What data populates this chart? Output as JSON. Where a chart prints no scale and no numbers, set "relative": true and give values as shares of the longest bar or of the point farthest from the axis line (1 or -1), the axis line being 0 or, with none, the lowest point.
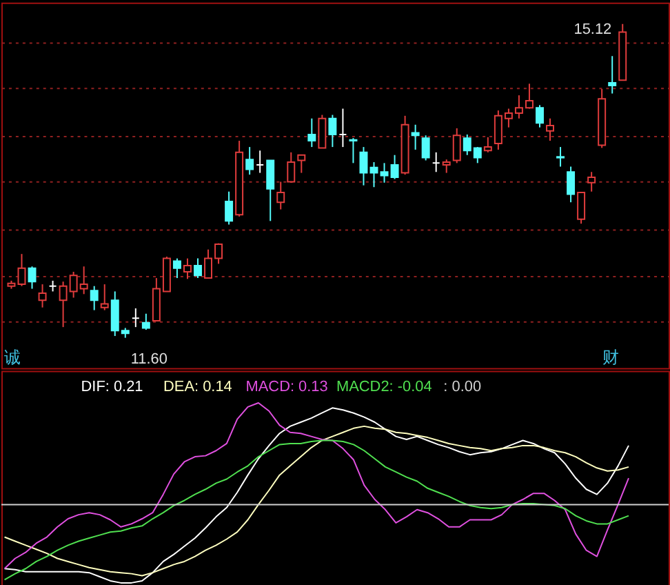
{
  "chart_data": [
    {
      "type": "candlestick",
      "tick_labels": false,
      "grid": "y",
      "categories": [
        null,
        null,
        null,
        null,
        null,
        null,
        null,
        null,
        null,
        null,
        null,
        null,
        null,
        null,
        null,
        null,
        null,
        null,
        null,
        null,
        null,
        null,
        null,
        null,
        null,
        null,
        null,
        null,
        null,
        null,
        null,
        null,
        null,
        null,
        null,
        null,
        null,
        null,
        null,
        null,
        null,
        null,
        null,
        null,
        null,
        null,
        null,
        null,
        null,
        null,
        null,
        null,
        null,
        null,
        null,
        null,
        null,
        null,
        null,
        null
      ],
      "ylim": [
        11.26,
        15.36
      ],
      "yticks": [
        {
          "value": 14.92,
          "label": null
        },
        {
          "value": 14.4,
          "label": null
        },
        {
          "value": 13.87,
          "label": null
        },
        {
          "value": 13.35,
          "label": null
        },
        {
          "value": 12.82,
          "label": null
        },
        {
          "value": 12.3,
          "label": null
        },
        {
          "value": 11.79,
          "label": null
        }
      ],
      "ohlc": [
        [
          12.18,
          12.24,
          12.15,
          12.21
        ],
        [
          12.2,
          12.54,
          12.18,
          12.38
        ],
        [
          12.38,
          12.4,
          12.15,
          12.23
        ],
        [
          12.02,
          12.2,
          11.94,
          12.1
        ],
        [
          12.18,
          12.24,
          12.12,
          12.18
        ],
        [
          12.02,
          12.23,
          11.72,
          12.18
        ],
        [
          12.12,
          12.34,
          12.05,
          12.3
        ],
        [
          12.15,
          12.4,
          12.09,
          12.2
        ],
        [
          12.13,
          12.18,
          11.91,
          12.02
        ],
        [
          11.94,
          12.2,
          11.91,
          11.98
        ],
        [
          12.02,
          12.12,
          11.62,
          11.68
        ],
        [
          11.68,
          11.71,
          11.6,
          11.65
        ],
        [
          11.82,
          11.93,
          11.72,
          11.82
        ],
        [
          11.77,
          11.87,
          11.69,
          11.71
        ],
        [
          11.79,
          12.27,
          11.79,
          12.15
        ],
        [
          12.12,
          12.51,
          12.12,
          12.49
        ],
        [
          12.46,
          12.49,
          12.27,
          12.38
        ],
        [
          12.34,
          12.49,
          12.26,
          12.41
        ],
        [
          12.41,
          12.49,
          12.27,
          12.3
        ],
        [
          12.27,
          12.59,
          12.27,
          12.49
        ],
        [
          12.49,
          12.66,
          12.43,
          12.65
        ],
        [
          13.13,
          13.24,
          12.87,
          12.91
        ],
        [
          12.98,
          13.81,
          12.96,
          13.68
        ],
        [
          13.6,
          13.74,
          13.43,
          13.49
        ],
        [
          13.54,
          13.7,
          13.45,
          13.54
        ],
        [
          13.59,
          13.59,
          12.91,
          13.27
        ],
        [
          13.12,
          13.35,
          13.04,
          13.23
        ],
        [
          13.35,
          13.68,
          13.34,
          13.57
        ],
        [
          13.59,
          13.65,
          13.45,
          13.65
        ],
        [
          13.88,
          14.06,
          13.74,
          13.81
        ],
        [
          13.73,
          14.1,
          13.73,
          14.06
        ],
        [
          14.06,
          14.1,
          13.74,
          13.88
        ],
        [
          13.88,
          14.17,
          13.74,
          13.88
        ],
        [
          13.82,
          13.84,
          13.56,
          13.81
        ],
        [
          13.68,
          13.74,
          13.31,
          13.45
        ],
        [
          13.51,
          13.57,
          13.29,
          13.45
        ],
        [
          13.46,
          13.56,
          13.34,
          13.42
        ],
        [
          13.54,
          13.65,
          13.38,
          13.4
        ],
        [
          13.45,
          14.09,
          13.43,
          13.99
        ],
        [
          13.9,
          13.99,
          13.71,
          13.87
        ],
        [
          13.84,
          13.87,
          13.59,
          13.62
        ],
        [
          13.56,
          13.68,
          13.46,
          13.56
        ],
        [
          13.54,
          13.6,
          13.45,
          13.57
        ],
        [
          13.59,
          13.95,
          13.56,
          13.87
        ],
        [
          13.84,
          13.88,
          13.65,
          13.7
        ],
        [
          13.73,
          13.74,
          13.56,
          13.62
        ],
        [
          13.7,
          13.85,
          13.68,
          13.74
        ],
        [
          13.78,
          14.15,
          13.71,
          14.09
        ],
        [
          14.06,
          14.17,
          13.96,
          14.12
        ],
        [
          14.12,
          14.32,
          14.06,
          14.18
        ],
        [
          14.18,
          14.45,
          14.17,
          14.26
        ],
        [
          14.18,
          14.21,
          13.96,
          14.01
        ],
        [
          13.92,
          14.06,
          13.81,
          13.98
        ],
        [
          13.63,
          13.74,
          13.52,
          13.62
        ],
        [
          13.46,
          13.52,
          13.12,
          13.21
        ],
        [
          12.93,
          13.23,
          12.88,
          13.23
        ],
        [
          13.34,
          13.46,
          13.24,
          13.4
        ],
        [
          13.76,
          14.39,
          13.73,
          14.28
        ],
        [
          14.46,
          14.76,
          14.34,
          14.43
        ],
        [
          14.49,
          15.12,
          14.49,
          15.03
        ]
      ],
      "colors": [
        "#e03c3c",
        "#e03c3c",
        "#54fcfc",
        "#e03c3c",
        "#ffffff",
        "#e03c3c",
        "#e03c3c",
        "#e03c3c",
        "#54fcfc",
        "#e03c3c",
        "#54fcfc",
        "#54fcfc",
        "#ffffff",
        "#54fcfc",
        "#e03c3c",
        "#e03c3c",
        "#54fcfc",
        "#e03c3c",
        "#54fcfc",
        "#e03c3c",
        "#e03c3c",
        "#54fcfc",
        "#e03c3c",
        "#54fcfc",
        "#ffffff",
        "#54fcfc",
        "#e03c3c",
        "#e03c3c",
        "#e03c3c",
        "#54fcfc",
        "#e03c3c",
        "#54fcfc",
        "#ffffff",
        "#54fcfc",
        "#54fcfc",
        "#54fcfc",
        "#54fcfc",
        "#54fcfc",
        "#e03c3c",
        "#54fcfc",
        "#54fcfc",
        "#ffffff",
        "#e03c3c",
        "#e03c3c",
        "#54fcfc",
        "#54fcfc",
        "#e03c3c",
        "#e03c3c",
        "#e03c3c",
        "#e03c3c",
        "#e03c3c",
        "#54fcfc",
        "#e03c3c",
        "#54fcfc",
        "#54fcfc",
        "#e03c3c",
        "#e03c3c",
        "#e03c3c",
        "#54fcfc",
        "#e03c3c"
      ],
      "annotations": [
        "15.12",
        "11.60",
        "诚",
        "财"
      ]
    },
    {
      "type": "line",
      "relative": true,
      "legend": "top left",
      "line_style": "solid",
      "marker": "none",
      "categories": [
        null,
        null,
        null,
        null,
        null,
        null,
        null,
        null,
        null,
        null,
        null,
        null,
        null,
        null,
        null,
        null,
        null,
        null,
        null,
        null,
        null,
        null,
        null,
        null,
        null,
        null,
        null,
        null,
        null,
        null,
        null,
        null,
        null,
        null,
        null,
        null,
        null,
        null,
        null,
        null,
        null,
        null,
        null,
        null,
        null,
        null,
        null,
        null,
        null,
        null,
        null,
        null,
        null,
        null,
        null,
        null,
        null,
        null,
        null,
        null
      ],
      "series": [
        {
          "name": "DIF: 0.21",
          "color": "#ffffff",
          "values": [
            -0.63,
            -0.64,
            -0.66,
            -0.66,
            -0.66,
            -0.66,
            -0.66,
            -0.66,
            -0.67,
            -0.71,
            -0.75,
            -0.77,
            -0.77,
            -0.75,
            -0.67,
            -0.56,
            -0.49,
            -0.41,
            -0.33,
            -0.23,
            -0.12,
            -0.03,
            0.12,
            0.29,
            0.45,
            0.58,
            0.7,
            0.77,
            0.81,
            0.85,
            0.9,
            0.95,
            0.93,
            0.9,
            0.86,
            0.81,
            0.74,
            0.67,
            0.64,
            0.67,
            0.63,
            0.59,
            0.56,
            0.52,
            0.49,
            0.51,
            0.52,
            0.55,
            0.59,
            0.63,
            0.6,
            0.55,
            0.51,
            0.4,
            0.26,
            0.15,
            0.1,
            0.21,
            0.38,
            0.58
          ]
        },
        {
          "name": "DEA: 0.14",
          "color": "#ffffc0",
          "values": [
            -0.32,
            -0.36,
            -0.4,
            -0.44,
            -0.48,
            -0.53,
            -0.56,
            -0.59,
            -0.62,
            -0.64,
            -0.66,
            -0.67,
            -0.68,
            -0.7,
            -0.67,
            -0.63,
            -0.59,
            -0.56,
            -0.51,
            -0.45,
            -0.4,
            -0.34,
            -0.27,
            -0.15,
            0.0,
            0.14,
            0.29,
            0.38,
            0.47,
            0.56,
            0.63,
            0.67,
            0.71,
            0.75,
            0.77,
            0.75,
            0.74,
            0.71,
            0.7,
            0.68,
            0.66,
            0.63,
            0.6,
            0.58,
            0.56,
            0.55,
            0.53,
            0.55,
            0.56,
            0.58,
            0.58,
            0.56,
            0.53,
            0.51,
            0.47,
            0.41,
            0.36,
            0.33,
            0.34,
            0.37
          ]
        },
        {
          "name": "MACD: 0.13",
          "color": "#e050e0",
          "values": [
            -0.63,
            -0.53,
            -0.47,
            -0.38,
            -0.32,
            -0.22,
            -0.14,
            -0.1,
            -0.08,
            -0.1,
            -0.15,
            -0.22,
            -0.19,
            -0.14,
            -0.08,
            0.1,
            0.3,
            0.42,
            0.47,
            0.48,
            0.53,
            0.6,
            0.84,
            0.96,
            1.0,
            0.92,
            0.78,
            0.71,
            0.7,
            0.67,
            0.64,
            0.63,
            0.55,
            0.44,
            0.19,
            0.05,
            -0.05,
            -0.18,
            -0.12,
            -0.05,
            -0.08,
            -0.14,
            -0.22,
            -0.22,
            -0.15,
            -0.15,
            -0.15,
            -0.1,
            0.0,
            0.05,
            0.11,
            0.11,
            0.04,
            -0.05,
            -0.29,
            -0.45,
            -0.51,
            -0.25,
            0.0,
            0.26
          ]
        },
        {
          "name": "MACD2: -0.04",
          "color": "#50e050",
          "values": [
            -0.74,
            -0.68,
            -0.63,
            -0.56,
            -0.51,
            -0.45,
            -0.4,
            -0.36,
            -0.33,
            -0.3,
            -0.27,
            -0.26,
            -0.23,
            -0.21,
            -0.14,
            -0.08,
            -0.01,
            0.04,
            0.1,
            0.15,
            0.21,
            0.25,
            0.32,
            0.38,
            0.47,
            0.53,
            0.59,
            0.6,
            0.6,
            0.62,
            0.63,
            0.63,
            0.62,
            0.59,
            0.53,
            0.45,
            0.37,
            0.32,
            0.27,
            0.23,
            0.16,
            0.12,
            0.08,
            0.03,
            -0.01,
            -0.03,
            -0.04,
            -0.03,
            0.0,
            0.01,
            0.01,
            0.0,
            -0.01,
            -0.04,
            -0.11,
            -0.16,
            -0.19,
            -0.19,
            -0.15,
            -0.11
          ]
        }
      ],
      "ref_lines": [
        {
          "axis": "y",
          "value": 0,
          "label": ": 0.00",
          "color": "#d0d0d0"
        }
      ]
    }
  ]
}
